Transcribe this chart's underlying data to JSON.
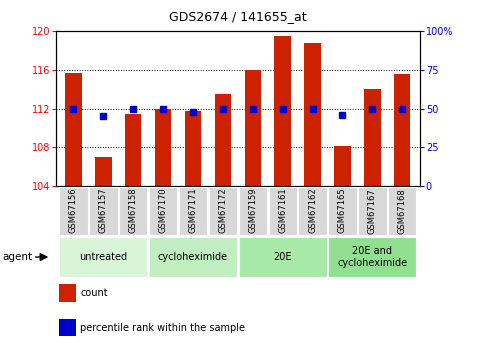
{
  "title": "GDS2674 / 141655_at",
  "samples": [
    "GSM67156",
    "GSM67157",
    "GSM67158",
    "GSM67170",
    "GSM67171",
    "GSM67172",
    "GSM67159",
    "GSM67161",
    "GSM67162",
    "GSM67165",
    "GSM67167",
    "GSM67168"
  ],
  "bar_values": [
    115.7,
    107.0,
    111.5,
    112.0,
    111.8,
    113.5,
    116.0,
    119.5,
    118.8,
    108.2,
    114.0,
    115.6
  ],
  "dot_values_pct": [
    50,
    45,
    50,
    50,
    48,
    50,
    50,
    50,
    50,
    46,
    50,
    50
  ],
  "bar_color": "#cc2200",
  "dot_color": "#0000cc",
  "ylim_left": [
    104,
    120
  ],
  "ylim_right": [
    0,
    100
  ],
  "yticks_left": [
    104,
    108,
    112,
    116,
    120
  ],
  "yticks_right": [
    0,
    25,
    50,
    75,
    100
  ],
  "ytick_right_labels": [
    "0",
    "25",
    "50",
    "75",
    "100%"
  ],
  "groups": [
    {
      "label": "untreated",
      "start": 0,
      "end": 2
    },
    {
      "label": "cycloheximide",
      "start": 3,
      "end": 5
    },
    {
      "label": "20E",
      "start": 6,
      "end": 8
    },
    {
      "label": "20E and\ncycloheximide",
      "start": 9,
      "end": 11
    }
  ],
  "grp_color_list": [
    "#d8f5d8",
    "#c0eec0",
    "#a8e8a8",
    "#90e090"
  ],
  "legend_count_color": "#cc2200",
  "legend_dot_color": "#0000cc",
  "bar_width": 0.55,
  "background_color": "#ffffff",
  "agent_label": "agent",
  "sample_box_color": "#d8d8d8",
  "title_fontsize": 9,
  "bar_label_fontsize": 6,
  "group_label_fontsize": 7,
  "tick_fontsize": 7,
  "legend_fontsize": 7
}
